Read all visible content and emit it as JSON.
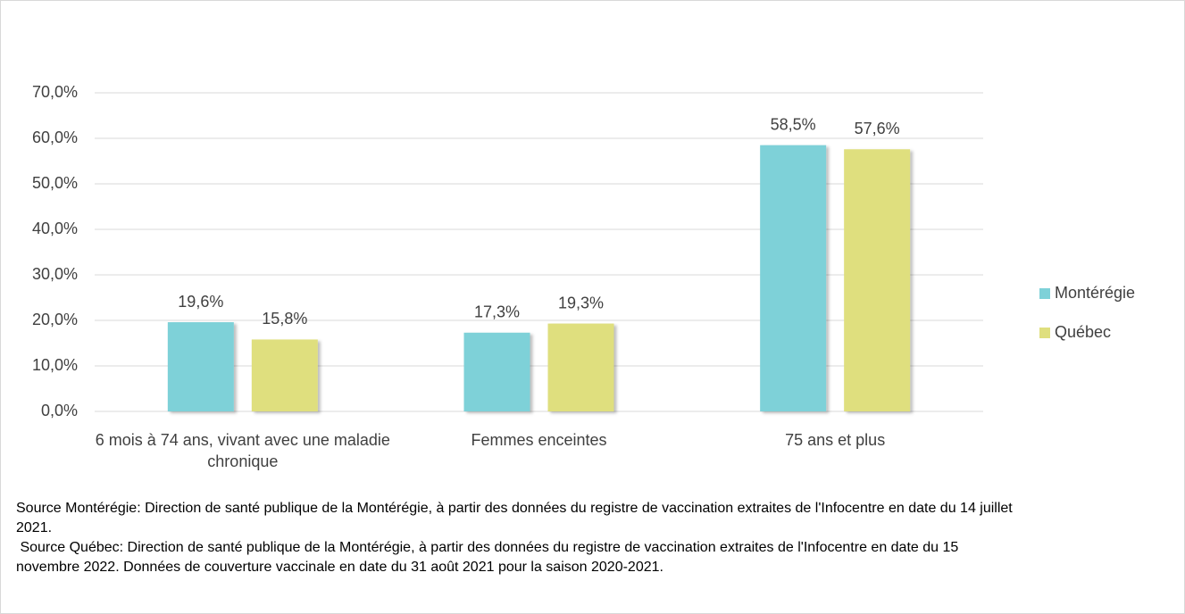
{
  "chart_data": {
    "type": "bar",
    "categories": [
      "6 mois à 74 ans, vivant avec une maladie chronique",
      "Femmes enceintes",
      "75 ans et plus"
    ],
    "series": [
      {
        "name": "Montérégie",
        "color": "#7ed1d8",
        "values": [
          19.6,
          17.3,
          58.5
        ],
        "value_labels": [
          "19,6%",
          "17,3%",
          "58,5%"
        ]
      },
      {
        "name": "Québec",
        "color": "#dfdf7e",
        "values": [
          15.8,
          19.3,
          57.6
        ],
        "value_labels": [
          "15,8%",
          "19,3%",
          "57,6%"
        ]
      }
    ],
    "ylim": [
      0,
      70
    ],
    "yticks": [
      {
        "value": 0,
        "label": "0,0%"
      },
      {
        "value": 10,
        "label": "10,0%"
      },
      {
        "value": 20,
        "label": "20,0%"
      },
      {
        "value": 30,
        "label": "30,0%"
      },
      {
        "value": 40,
        "label": "40,0%"
      },
      {
        "value": 50,
        "label": "50,0%"
      },
      {
        "value": 60,
        "label": "60,0%"
      },
      {
        "value": 70,
        "label": "70,0%"
      }
    ],
    "grid": true,
    "legend": "right",
    "notes": [
      "Source Montérégie: Direction de santé publique de la Montérégie, à partir des données du registre de vaccination extraites de l'Infocentre en date du 14 juillet 2021.",
      " Source Québec: Direction de santé publique de la Montérégie, à partir des données du registre de vaccination extraites de l'Infocentre en date du 15 novembre 2022. Données de couverture vaccinale en date du 31 août 2021 pour la saison 2020-2021."
    ]
  }
}
